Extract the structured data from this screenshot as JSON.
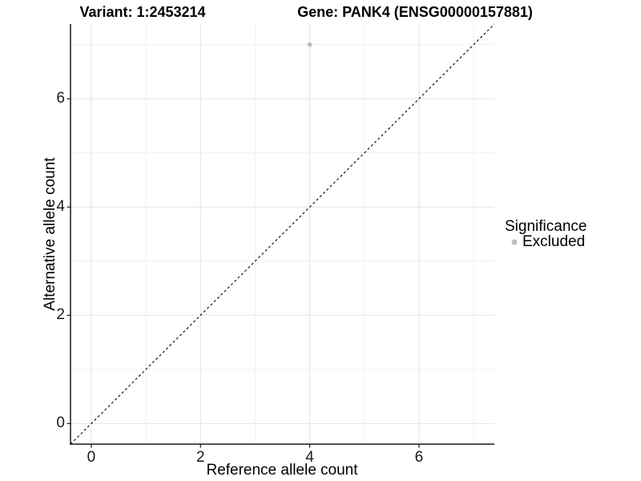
{
  "chart_data": {
    "type": "scatter",
    "titles": {
      "left": "Variant: 1:2453214",
      "right": "Gene: PANK4 (ENSG00000157881)"
    },
    "xlabel": "Reference allele count",
    "ylabel": "Alternative allele count",
    "xlim": [
      -0.38,
      7.38
    ],
    "ylim": [
      -0.38,
      7.38
    ],
    "x_ticks": [
      0,
      2,
      4,
      6
    ],
    "y_ticks": [
      0,
      2,
      4,
      6
    ],
    "minor_gridlines": [
      1,
      3,
      5,
      7
    ],
    "grid": "on",
    "reference_line": {
      "slope": 1,
      "intercept": 0,
      "style": "dashed",
      "color": "#000000"
    },
    "series": [
      {
        "name": "Excluded",
        "color": "#bdbdbd",
        "points": [
          {
            "x": 4,
            "y": 7
          }
        ]
      }
    ],
    "legend": {
      "title": "Significance",
      "position": "right",
      "entries": [
        {
          "label": "Excluded",
          "color": "#bdbdbd",
          "marker": "circle"
        }
      ]
    }
  },
  "colors": {
    "background": "#ffffff",
    "grid_major": "#e2e2e2",
    "grid_minor": "#efefef",
    "axis_line": "#1a1a1a",
    "text": "#000000",
    "point": "#bdbdbd"
  }
}
